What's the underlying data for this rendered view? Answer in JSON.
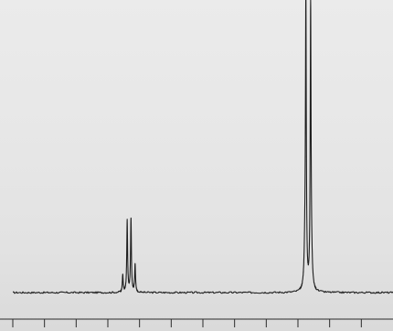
{
  "chart_data": {
    "type": "line",
    "title": "",
    "xlabel": "",
    "ylabel": "",
    "x_range": [
      0,
      12
    ],
    "x_tick_count": 13,
    "y_range": [
      0,
      1
    ],
    "baseline_noise": 0.006,
    "grid": false,
    "legend": "none",
    "series": [
      {
        "peaks": [
          {
            "x": 3.47,
            "height": 0.06,
            "width": 0.016
          },
          {
            "x": 3.61,
            "height": 0.25,
            "width": 0.016
          },
          {
            "x": 3.73,
            "height": 0.26,
            "width": 0.016
          },
          {
            "x": 3.86,
            "height": 0.1,
            "width": 0.016
          },
          {
            "x": 9.22,
            "height": 0.11,
            "width": 0.03
          },
          {
            "x": 9.25,
            "height": 1.0,
            "width": 0.016
          },
          {
            "x": 9.4,
            "height": 0.98,
            "width": 0.016
          },
          {
            "x": 9.43,
            "height": 0.07,
            "width": 0.03
          }
        ]
      }
    ],
    "colors": {
      "trace": "#1e1e1e",
      "axis": "#2a2a2a"
    }
  }
}
